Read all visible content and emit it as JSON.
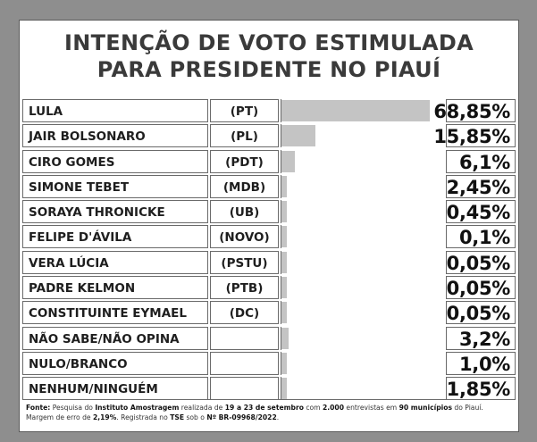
{
  "chart_data": {
    "type": "bar",
    "title": "INTENÇÃO DE VOTO ESTIMULADA",
    "subtitle": "PARA PRESIDENTE NO PIAUÍ",
    "rows": [
      {
        "name": "LULA",
        "party": "(PT)",
        "value": 68.85,
        "label": "68,85%"
      },
      {
        "name": "JAIR BOLSONARO",
        "party": "(PL)",
        "value": 15.85,
        "label": "15,85%"
      },
      {
        "name": "CIRO GOMES",
        "party": "(PDT)",
        "value": 6.1,
        "label": "6,1%"
      },
      {
        "name": "SIMONE TEBET",
        "party": "(MDB)",
        "value": 2.45,
        "label": "2,45%"
      },
      {
        "name": "SORAYA THRONICKE",
        "party": "(UB)",
        "value": 0.45,
        "label": "0,45%"
      },
      {
        "name": "FELIPE D'ÁVILA",
        "party": "(NOVO)",
        "value": 0.1,
        "label": "0,1%"
      },
      {
        "name": "VERA LÚCIA",
        "party": "(PSTU)",
        "value": 0.05,
        "label": "0,05%"
      },
      {
        "name": "PADRE KELMON",
        "party": "(PTB)",
        "value": 0.05,
        "label": "0,05%"
      },
      {
        "name": "CONSTITUINTE EYMAEL",
        "party": "(DC)",
        "value": 0.05,
        "label": "0,05%"
      },
      {
        "name": "NÃO SABE/NÃO OPINA",
        "party": "",
        "value": 3.2,
        "label": "3,2%"
      },
      {
        "name": "NULO/BRANCO",
        "party": "",
        "value": 1.0,
        "label": "1,0%"
      },
      {
        "name": "NENHUM/NINGUÉM",
        "party": "",
        "value": 1.85,
        "label": "1,85%"
      }
    ],
    "xlim": [
      0,
      76
    ]
  },
  "footnote": {
    "fonte_label": "Fonte:",
    "t1": " Pesquisa do ",
    "instituto": "Instituto Amostragem",
    "t2": " realizada de ",
    "dates": "19 a 23 de setembro",
    "t3": " com ",
    "n": "2.000",
    "t4": " entrevistas em ",
    "municipios": "90 municípios",
    "t5": " do Piauí.",
    "t6": "Margem de erro de ",
    "margem": "2,19%",
    "t7": ". Registrada no ",
    "tse": "TSE",
    "t8": " sob o ",
    "registro": "Nº BR-09968/2022",
    "t9": "."
  },
  "colors": {
    "background": "#8e8e8e",
    "bar": "#c4c4c4"
  }
}
